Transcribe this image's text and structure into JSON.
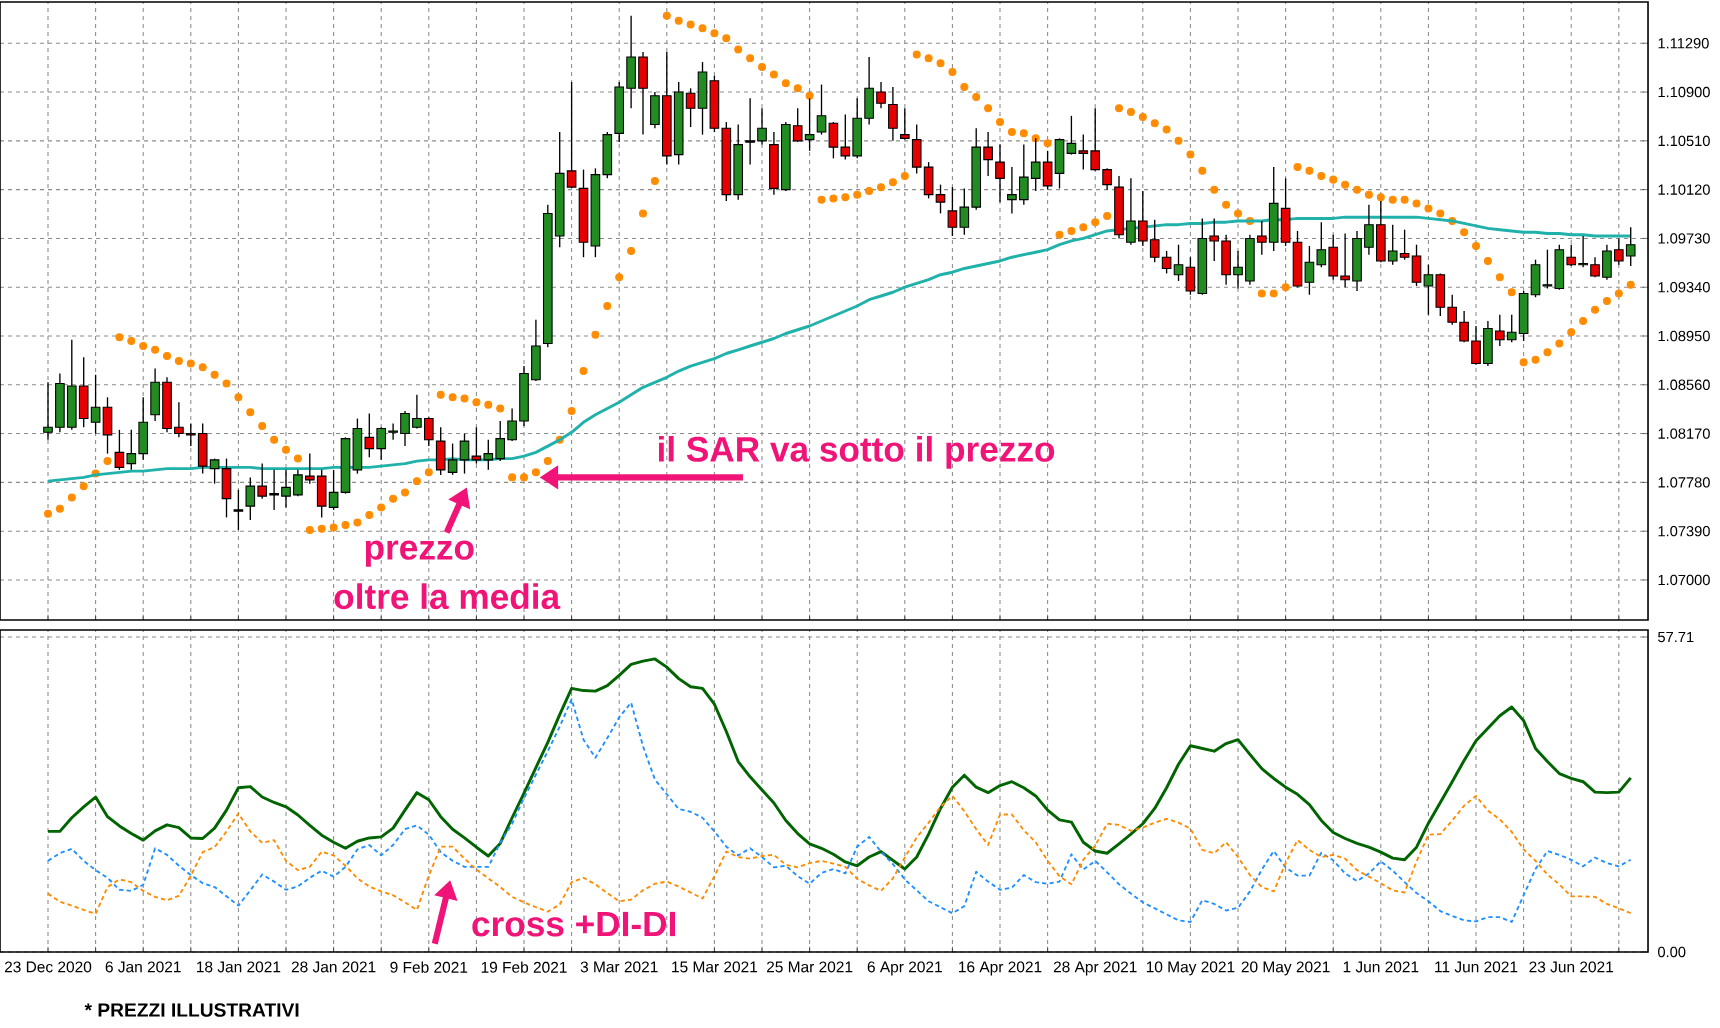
{
  "chart_data": [
    {
      "type": "candlestick",
      "categories": [
        null,
        null,
        null,
        null,
        null,
        null,
        null,
        null,
        null,
        null,
        null,
        null,
        null,
        null,
        null,
        null,
        null,
        null,
        null,
        null,
        null,
        null,
        null,
        null,
        null,
        null,
        null,
        null,
        null,
        null,
        null,
        null,
        null,
        null,
        null,
        null,
        null,
        null,
        null,
        null,
        null,
        null,
        null,
        null,
        null,
        null,
        null,
        null,
        null,
        null,
        null,
        null,
        null,
        null,
        null,
        null,
        null,
        null,
        null,
        null,
        null,
        null,
        null,
        null,
        null,
        null,
        null,
        null,
        null,
        null,
        null,
        null,
        null,
        null,
        null,
        null,
        null,
        null,
        null,
        null,
        null,
        null,
        null,
        null,
        null,
        null,
        null,
        null,
        null,
        null,
        null,
        null,
        null,
        null,
        null,
        null,
        null,
        null,
        null,
        null,
        null,
        null,
        null,
        null,
        null,
        null,
        null,
        null,
        null,
        null,
        null,
        null,
        null,
        null,
        null,
        null,
        null,
        null,
        null,
        null,
        null,
        null,
        null,
        null,
        null,
        null,
        null,
        null,
        null,
        null,
        null,
        null,
        null,
        null
      ],
      "ohlc": [
        [
          1.0818,
          1.0858,
          1.0812,
          1.0822
        ],
        [
          1.0822,
          1.0865,
          1.0818,
          1.0857
        ],
        [
          1.0822,
          1.0892,
          1.082,
          1.0855
        ],
        [
          1.0855,
          1.0878,
          1.0822,
          1.0829
        ],
        [
          1.0826,
          1.0864,
          1.0817,
          1.0838
        ],
        [
          1.0838,
          1.0846,
          1.0801,
          1.0816
        ],
        [
          1.0802,
          1.082,
          1.0788,
          1.079
        ],
        [
          1.0793,
          1.082,
          1.0788,
          1.0801
        ],
        [
          1.0801,
          1.0846,
          1.0796,
          1.0826
        ],
        [
          1.0832,
          1.0869,
          1.0827,
          1.0858
        ],
        [
          1.0858,
          1.0862,
          1.0818,
          1.0821
        ],
        [
          1.0822,
          1.0842,
          1.0814,
          1.0817
        ],
        [
          1.0817,
          1.0825,
          1.0807,
          1.0816
        ],
        [
          1.0817,
          1.0825,
          1.0785,
          1.0791
        ],
        [
          1.0789,
          1.0797,
          1.0777,
          1.0796
        ],
        [
          1.0789,
          1.0797,
          1.075,
          1.0765
        ],
        [
          1.0756,
          1.0772,
          1.074,
          1.0755
        ],
        [
          1.0759,
          1.0782,
          1.0748,
          1.0775
        ],
        [
          1.0775,
          1.0793,
          1.0765,
          1.0767
        ],
        [
          1.0768,
          1.0788,
          1.0756,
          1.0769
        ],
        [
          1.0767,
          1.0788,
          1.0758,
          1.0774
        ],
        [
          1.0768,
          1.0788,
          1.0767,
          1.0784
        ],
        [
          1.0783,
          1.0801,
          1.0777,
          1.078
        ],
        [
          1.0783,
          1.0788,
          1.075,
          1.0759
        ],
        [
          1.0758,
          1.0788,
          1.0756,
          1.077
        ],
        [
          1.077,
          1.0814,
          1.0769,
          1.0813
        ],
        [
          1.0788,
          1.0829,
          1.0785,
          1.0821
        ],
        [
          1.0814,
          1.0833,
          1.0798,
          1.0805
        ],
        [
          1.0805,
          1.0822,
          1.0796,
          1.0821
        ],
        [
          1.0818,
          1.0825,
          1.0812,
          1.0819
        ],
        [
          1.0817,
          1.0835,
          1.0807,
          1.0833
        ],
        [
          1.0822,
          1.0848,
          1.0821,
          1.0829
        ],
        [
          1.0829,
          1.083,
          1.0807,
          1.0812
        ],
        [
          1.0811,
          1.0822,
          1.0784,
          1.0788
        ],
        [
          1.0786,
          1.0809,
          1.0784,
          1.0796
        ],
        [
          1.0796,
          1.0817,
          1.0785,
          1.0811
        ],
        [
          1.0799,
          1.0822,
          1.0793,
          1.0796
        ],
        [
          1.0796,
          1.0812,
          1.0788,
          1.0801
        ],
        [
          1.0797,
          1.0827,
          1.0795,
          1.0813
        ],
        [
          1.0812,
          1.0837,
          1.0811,
          1.0827
        ],
        [
          1.0827,
          1.0871,
          1.0823,
          1.0865
        ],
        [
          1.086,
          1.0908,
          1.0859,
          1.0887
        ],
        [
          1.0889,
          1.1,
          1.0886,
          1.0993
        ],
        [
          1.0975,
          1.1058,
          1.0966,
          1.1025
        ],
        [
          1.1027,
          1.1098,
          1.1013,
          1.1014
        ],
        [
          1.1013,
          1.1028,
          1.0958,
          1.097
        ],
        [
          1.0967,
          1.1029,
          1.0958,
          1.1024
        ],
        [
          1.1024,
          1.1058,
          1.1021,
          1.1056
        ],
        [
          1.1057,
          1.1098,
          1.105,
          1.1094
        ],
        [
          1.1093,
          1.1151,
          1.1077,
          1.1118
        ],
        [
          1.1118,
          1.1122,
          1.1056,
          1.1093
        ],
        [
          1.1064,
          1.109,
          1.1061,
          1.1087
        ],
        [
          1.1087,
          1.1122,
          1.1032,
          1.1039
        ],
        [
          1.104,
          1.1098,
          1.1032,
          1.109
        ],
        [
          1.1089,
          1.1093,
          1.1062,
          1.1077
        ],
        [
          1.1077,
          1.1114,
          1.1056,
          1.1106
        ],
        [
          1.1099,
          1.1103,
          1.1058,
          1.1061
        ],
        [
          1.1061,
          1.1066,
          1.1003,
          1.1008
        ],
        [
          1.1008,
          1.1064,
          1.1004,
          1.1048
        ],
        [
          1.1051,
          1.1085,
          1.1032,
          1.105
        ],
        [
          1.1051,
          1.1077,
          1.1048,
          1.1061
        ],
        [
          1.1048,
          1.1058,
          1.1008,
          1.1013
        ],
        [
          1.1012,
          1.1066,
          1.1011,
          1.1064
        ],
        [
          1.1063,
          1.1077,
          1.105,
          1.1051
        ],
        [
          1.1052,
          1.1085,
          1.1043,
          1.1056
        ],
        [
          1.1058,
          1.1096,
          1.1056,
          1.1071
        ],
        [
          1.1065,
          1.1066,
          1.1037,
          1.1046
        ],
        [
          1.1046,
          1.1072,
          1.1036,
          1.1039
        ],
        [
          1.1039,
          1.1085,
          1.1037,
          1.1069
        ],
        [
          1.1069,
          1.1118,
          1.1064,
          1.1093
        ],
        [
          1.109,
          1.1098,
          1.1077,
          1.1081
        ],
        [
          1.108,
          1.1094,
          1.1051,
          1.1061
        ],
        [
          1.1056,
          1.1077,
          1.1052,
          1.1053
        ],
        [
          1.1052,
          1.1064,
          1.1025,
          1.103
        ],
        [
          1.103,
          1.1034,
          1.1005,
          1.1008
        ],
        [
          1.1008,
          1.1016,
          1.0993,
          1.1002
        ],
        [
          1.0995,
          1.1014,
          1.0975,
          1.0982
        ],
        [
          1.0982,
          1.1013,
          1.0976,
          1.0998
        ],
        [
          1.0998,
          1.1061,
          1.0996,
          1.1046
        ],
        [
          1.1046,
          1.1058,
          1.1023,
          1.1036
        ],
        [
          1.1034,
          1.1048,
          1.1002,
          1.1021
        ],
        [
          1.1004,
          1.103,
          1.0993,
          1.1008
        ],
        [
          1.1004,
          1.1048,
          1.1,
          1.1022
        ],
        [
          1.1021,
          1.1053,
          1.1011,
          1.1034
        ],
        [
          1.1034,
          1.1043,
          1.1012,
          1.1015
        ],
        [
          1.1025,
          1.1053,
          1.1013,
          1.1052
        ],
        [
          1.1041,
          1.1071,
          1.104,
          1.1049
        ],
        [
          1.1043,
          1.1056,
          1.1028,
          1.1041
        ],
        [
          1.1043,
          1.1077,
          1.1027,
          1.1028
        ],
        [
          1.1028,
          1.1029,
          1.1012,
          1.1016
        ],
        [
          1.1014,
          1.1023,
          1.0973,
          1.0976
        ],
        [
          1.097,
          1.1021,
          1.0968,
          1.0987
        ],
        [
          1.0987,
          1.1011,
          1.0967,
          1.0971
        ],
        [
          1.0972,
          1.0988,
          1.0954,
          1.0958
        ],
        [
          1.0958,
          1.0963,
          1.0945,
          1.0949
        ],
        [
          1.0944,
          1.0968,
          1.0939,
          1.0952
        ],
        [
          1.095,
          1.0958,
          1.0928,
          1.0931
        ],
        [
          1.0929,
          1.0989,
          1.0928,
          1.0973
        ],
        [
          1.0975,
          1.0989,
          1.0955,
          1.0971
        ],
        [
          1.0971,
          1.0976,
          1.0936,
          1.0944
        ],
        [
          1.0944,
          1.0963,
          1.0933,
          1.095
        ],
        [
          1.0939,
          1.0976,
          1.0936,
          1.0973
        ],
        [
          1.0975,
          1.0987,
          1.096,
          1.097
        ],
        [
          1.097,
          1.103,
          1.0963,
          1.1001
        ],
        [
          1.0997,
          1.1021,
          1.0967,
          1.097
        ],
        [
          1.097,
          1.0979,
          1.0934,
          1.0935
        ],
        [
          1.0938,
          1.0967,
          1.0928,
          1.0954
        ],
        [
          1.0952,
          1.0986,
          1.095,
          1.0964
        ],
        [
          1.0966,
          1.0976,
          1.094,
          1.0943
        ],
        [
          1.0943,
          1.0977,
          1.0934,
          1.094
        ],
        [
          1.0939,
          1.0979,
          1.0931,
          1.0973
        ],
        [
          1.0966,
          1.1,
          1.096,
          1.0984
        ],
        [
          1.0984,
          1.1003,
          1.0954,
          1.0955
        ],
        [
          1.0955,
          1.0984,
          1.0952,
          1.0963
        ],
        [
          1.0961,
          1.098,
          1.0956,
          1.0958
        ],
        [
          1.0959,
          1.0968,
          1.0935,
          1.0938
        ],
        [
          1.0935,
          1.0952,
          1.0912,
          1.0944
        ],
        [
          1.0944,
          1.0945,
          1.0911,
          1.0918
        ],
        [
          1.0918,
          1.0928,
          1.0904,
          1.0906
        ],
        [
          1.0906,
          1.0915,
          1.089,
          1.0891
        ],
        [
          1.0891,
          1.0903,
          1.0872,
          1.0873
        ],
        [
          1.0873,
          1.0907,
          1.0871,
          1.0901
        ],
        [
          1.0899,
          1.0912,
          1.0887,
          1.0892
        ],
        [
          1.0892,
          1.0912,
          1.089,
          1.0898
        ],
        [
          1.0897,
          1.0931,
          1.0891,
          1.0929
        ],
        [
          1.0928,
          1.0956,
          1.0926,
          1.0952
        ],
        [
          1.0935,
          1.0964,
          1.0933,
          1.0936
        ],
        [
          1.0933,
          1.0968,
          1.0932,
          1.0964
        ],
        [
          1.0958,
          1.0968,
          1.0951,
          1.0952
        ],
        [
          1.0952,
          1.0975,
          1.095,
          1.0953
        ],
        [
          1.0952,
          1.0958,
          1.0942,
          1.0943
        ],
        [
          1.0942,
          1.0968,
          1.094,
          1.0963
        ],
        [
          1.0964,
          1.0973,
          1.0952,
          1.0955
        ],
        [
          1.0959,
          1.0982,
          1.0951,
          1.0968
        ]
      ],
      "series": [
        {
          "type": "scatter",
          "color": "#ff8c00",
          "marker": "circle",
          "values": [
            1.0753,
            1.0757,
            1.0766,
            1.0775,
            1.0785,
            1.0795,
            1.0894,
            1.0891,
            1.0887,
            1.0884,
            1.0879,
            1.0875,
            1.0873,
            1.087,
            1.0864,
            1.0857,
            1.0846,
            1.0834,
            1.0823,
            1.0812,
            1.0804,
            1.0797,
            1.074,
            1.0741,
            1.0742,
            1.0744,
            1.0746,
            1.0752,
            1.0758,
            1.0765,
            1.077,
            1.0779,
            1.0786,
            1.0848,
            1.0846,
            1.0845,
            1.0842,
            1.084,
            1.0837,
            1.0782,
            1.0782,
            1.0786,
            1.0795,
            1.0812,
            1.0835,
            1.0867,
            1.0896,
            1.0919,
            1.0942,
            1.0963,
            1.0993,
            1.1019,
            1.1151,
            1.1147,
            1.1144,
            1.1141,
            1.1137,
            1.1133,
            1.1124,
            1.1117,
            1.111,
            1.1104,
            1.1097,
            1.1093,
            1.1087,
            1.1004,
            1.1005,
            1.1006,
            1.1008,
            1.1011,
            1.1014,
            1.1018,
            1.1023,
            1.112,
            1.1117,
            1.1113,
            1.1106,
            1.1094,
            1.1086,
            1.1077,
            1.1066,
            1.1058,
            1.1057,
            1.1053,
            1.1049,
            1.0976,
            1.0979,
            1.0982,
            1.0986,
            1.0991,
            1.1077,
            1.1074,
            1.107,
            1.1065,
            1.106,
            1.1051,
            1.104,
            1.1027,
            1.1012,
            1.1,
            1.0993,
            1.0987,
            1.0929,
            1.0929,
            1.0934,
            1.103,
            1.1027,
            1.1023,
            1.102,
            1.1016,
            1.1012,
            1.1008,
            1.1006,
            1.1004,
            1.1004,
            1.1001,
            1.0997,
            1.0993,
            1.0987,
            1.0978,
            1.0967,
            1.0955,
            1.0942,
            1.093,
            1.0874,
            1.0876,
            1.0882,
            1.0889,
            1.0898,
            1.0907,
            1.0916,
            1.0923,
            1.0929,
            1.0936
          ]
        },
        {
          "type": "line",
          "color": "#20b2aa",
          "values": [
            1.0779,
            1.078,
            1.0781,
            1.0782,
            1.0784,
            1.0785,
            1.0786,
            1.0787,
            1.0787,
            1.0788,
            1.0789,
            1.0789,
            1.0789,
            1.079,
            1.079,
            1.079,
            1.079,
            1.079,
            1.0789,
            1.0789,
            1.0789,
            1.0789,
            1.0789,
            1.0789,
            1.079,
            1.079,
            1.079,
            1.079,
            1.0791,
            1.0792,
            1.0793,
            1.0795,
            1.0796,
            1.0796,
            1.0797,
            1.0796,
            1.0796,
            1.0796,
            1.0797,
            1.0797,
            1.0799,
            1.0802,
            1.0807,
            1.0812,
            1.0818,
            1.0826,
            1.0832,
            1.0837,
            1.0842,
            1.0848,
            1.0854,
            1.0858,
            1.0862,
            1.0867,
            1.0871,
            1.0874,
            1.0877,
            1.0881,
            1.0884,
            1.0887,
            1.089,
            1.0893,
            1.0897,
            1.09,
            1.0903,
            1.0907,
            1.0911,
            1.0915,
            1.0919,
            1.0924,
            1.0927,
            1.093,
            1.0934,
            1.0937,
            1.094,
            1.0944,
            1.0946,
            1.0949,
            1.0951,
            1.0953,
            1.0955,
            1.0958,
            1.096,
            1.0962,
            1.0964,
            1.0968,
            1.0971,
            1.0973,
            1.0976,
            1.0979,
            1.098,
            1.0981,
            1.0982,
            1.0983,
            1.0984,
            1.0984,
            1.0985,
            1.0985,
            1.0986,
            1.0986,
            1.0987,
            1.0987,
            1.0987,
            1.0988,
            1.0988,
            1.0989,
            1.0989,
            1.0989,
            1.0989,
            1.099,
            1.099,
            1.099,
            1.099,
            1.099,
            1.099,
            1.099,
            1.0989,
            1.0988,
            1.0987,
            1.0985,
            1.0983,
            1.0981,
            1.098,
            1.0979,
            1.0978,
            1.0978,
            1.0977,
            1.0977,
            1.0976,
            1.0976,
            1.0975,
            1.0975,
            1.0975,
            1.0975
          ]
        }
      ],
      "ylim": [
        1.0668,
        1.1162
      ],
      "yticks": [
        {
          "value": 1.07,
          "label": "1.07000"
        },
        {
          "value": 1.0739,
          "label": "1.07390"
        },
        {
          "value": 1.0778,
          "label": "1.07780"
        },
        {
          "value": 1.0817,
          "label": "1.08170"
        },
        {
          "value": 1.0856,
          "label": "1.08560"
        },
        {
          "value": 1.0895,
          "label": "1.08950"
        },
        {
          "value": 1.0934,
          "label": "1.09340"
        },
        {
          "value": 1.0973,
          "label": "1.09730"
        },
        {
          "value": 1.1012,
          "label": "1.10120"
        },
        {
          "value": 1.1051,
          "label": "1.10510"
        },
        {
          "value": 1.109,
          "label": "1.10900"
        },
        {
          "value": 1.1129,
          "label": "1.11290"
        }
      ],
      "grid": true,
      "tick_labels": "y",
      "annotations": [
        "il SAR va sotto il prezzo",
        {
          "text": "prezzo",
          "y": 1.0774
        },
        "oltre la media"
      ]
    },
    {
      "type": "line",
      "categories": [
        "23 Dec 2020",
        null,
        null,
        null,
        null,
        null,
        null,
        null,
        "6 Jan 2021",
        null,
        null,
        null,
        null,
        null,
        null,
        null,
        "18 Jan 2021",
        null,
        null,
        null,
        null,
        null,
        null,
        null,
        "28 Jan 2021",
        null,
        null,
        null,
        null,
        null,
        null,
        null,
        "9 Feb 2021",
        null,
        null,
        null,
        null,
        null,
        null,
        null,
        "19 Feb 2021",
        null,
        null,
        null,
        null,
        null,
        null,
        null,
        "3 Mar 2021",
        null,
        null,
        null,
        null,
        null,
        null,
        null,
        "15 Mar 2021",
        null,
        null,
        null,
        null,
        null,
        null,
        null,
        "25 Mar 2021",
        null,
        null,
        null,
        null,
        null,
        null,
        null,
        "6 Apr 2021",
        null,
        null,
        null,
        null,
        null,
        null,
        null,
        "16 Apr 2021",
        null,
        null,
        null,
        null,
        null,
        null,
        null,
        "28 Apr 2021",
        null,
        null,
        null,
        null,
        null,
        null,
        null,
        "10 May 2021",
        null,
        null,
        null,
        null,
        null,
        null,
        null,
        "20 May 2021",
        null,
        null,
        null,
        null,
        null,
        null,
        null,
        "1 Jun 2021",
        null,
        null,
        null,
        null,
        null,
        null,
        null,
        "11 Jun 2021",
        null,
        null,
        null,
        null,
        null,
        null,
        null,
        "23 Jun 2021",
        null,
        null,
        null,
        null,
        null
      ],
      "series": [
        {
          "color": "#006400",
          "line_style": "solid",
          "values": [
            22.1,
            22.1,
            24.6,
            26.6,
            28.4,
            24.8,
            23.1,
            21.7,
            20.5,
            22.2,
            23.3,
            22.8,
            20.9,
            20.8,
            22.7,
            26.0,
            30.1,
            30.3,
            28.4,
            27.4,
            26.6,
            25.1,
            23.2,
            21.4,
            20.1,
            19.0,
            20.3,
            20.9,
            21.1,
            22.7,
            26.0,
            29.2,
            27.9,
            24.8,
            22.5,
            20.9,
            19.2,
            17.6,
            19.9,
            24.6,
            29.1,
            33.8,
            38.4,
            43.5,
            48.3,
            47.9,
            47.8,
            48.8,
            50.7,
            52.7,
            53.3,
            53.7,
            52.2,
            50.1,
            48.6,
            48.3,
            45.4,
            40.4,
            34.9,
            32.1,
            29.7,
            27.3,
            24.1,
            21.7,
            19.8,
            19.0,
            17.9,
            16.5,
            15.8,
            17.4,
            18.4,
            16.8,
            15.2,
            17.4,
            21.6,
            26.3,
            30.2,
            32.4,
            30.2,
            29.2,
            30.5,
            31.2,
            30.1,
            28.6,
            26.0,
            24.2,
            23.8,
            20.1,
            18.5,
            18.1,
            19.8,
            21.6,
            23.5,
            26.3,
            30.1,
            34.4,
            37.8,
            37.3,
            36.8,
            38.2,
            38.9,
            36.2,
            33.6,
            31.8,
            30.2,
            28.9,
            27.0,
            24.1,
            21.9,
            20.8,
            19.9,
            19.2,
            18.3,
            17.2,
            16.9,
            19.2,
            23.6,
            27.4,
            31.2,
            35.1,
            38.7,
            41.0,
            43.3,
            44.9,
            42.4,
            37.3,
            34.9,
            32.7,
            31.8,
            31.2,
            29.3,
            29.2,
            29.3,
            31.9
          ]
        },
        {
          "color": "#1e90ff",
          "line_style": "dashed",
          "values": [
            16.7,
            18.1,
            18.9,
            16.7,
            15.0,
            13.6,
            11.4,
            11.2,
            12.3,
            19.0,
            17.8,
            15.8,
            14.1,
            12.6,
            11.9,
            10.2,
            8.5,
            11.3,
            14.2,
            12.9,
            11.4,
            12.0,
            13.6,
            14.9,
            13.8,
            15.6,
            18.8,
            19.6,
            17.7,
            19.6,
            22.5,
            23.2,
            21.5,
            18.3,
            16.7,
            15.6,
            15.6,
            15.6,
            20.0,
            23.5,
            28.2,
            32.5,
            36.8,
            41.3,
            46.3,
            38.9,
            35.6,
            39.2,
            43.0,
            45.7,
            37.7,
            31.6,
            28.9,
            26.2,
            25.7,
            24.6,
            22.1,
            19.3,
            17.7,
            19.0,
            17.4,
            15.5,
            15.8,
            13.9,
            12.5,
            14.5,
            15.2,
            14.4,
            19.3,
            21.1,
            18.4,
            16.1,
            13.3,
            11.3,
            9.3,
            8.2,
            7.1,
            8.4,
            14.7,
            12.9,
            11.4,
            11.8,
            14.1,
            12.8,
            12.5,
            12.9,
            17.9,
            15.1,
            16.7,
            14.6,
            12.4,
            10.7,
            9.1,
            8.0,
            6.9,
            5.8,
            5.5,
            9.5,
            8.8,
            7.6,
            8.1,
            11.1,
            15.1,
            18.5,
            15.5,
            14.0,
            14.0,
            18.2,
            16.8,
            14.4,
            13.0,
            14.4,
            16.6,
            14.9,
            12.8,
            10.8,
            9.3,
            7.5,
            6.6,
            5.8,
            5.6,
            6.4,
            6.4,
            5.5,
            10.4,
            15.2,
            18.5,
            17.8,
            16.9,
            15.7,
            17.3,
            16.3,
            15.7,
            16.9
          ]
        },
        {
          "color": "#ff8c00",
          "line_style": "dashed",
          "values": [
            10.7,
            9.2,
            8.5,
            7.7,
            7.0,
            11.9,
            13.3,
            12.8,
            11.2,
            10.1,
            9.5,
            10.3,
            14.0,
            18.3,
            19.2,
            22.1,
            25.4,
            22.1,
            20.0,
            20.5,
            16.7,
            15.0,
            15.6,
            18.4,
            17.7,
            15.8,
            13.5,
            12.0,
            11.1,
            10.4,
            9.1,
            7.7,
            14.0,
            19.3,
            19.3,
            17.1,
            15.1,
            13.5,
            11.9,
            10.1,
            9.1,
            8.2,
            7.4,
            8.7,
            12.8,
            13.6,
            12.4,
            10.8,
            9.3,
            9.6,
            11.3,
            12.5,
            12.9,
            12.0,
            10.9,
            9.8,
            13.9,
            18.4,
            17.4,
            17.1,
            17.6,
            17.8,
            16.0,
            15.5,
            16.3,
            16.7,
            16.2,
            15.6,
            13.4,
            12.2,
            11.2,
            13.5,
            17.3,
            21.0,
            23.7,
            26.6,
            28.6,
            25.8,
            22.5,
            19.6,
            25.2,
            25.2,
            22.3,
            20.1,
            16.7,
            13.9,
            12.4,
            16.9,
            19.5,
            23.5,
            23.3,
            22.2,
            22.8,
            23.7,
            24.4,
            23.7,
            22.6,
            18.7,
            18.1,
            20.1,
            17.4,
            14.1,
            11.9,
            11.1,
            16.3,
            20.5,
            18.7,
            17.4,
            17.8,
            17.1,
            15.0,
            13.8,
            12.6,
            11.3,
            10.9,
            16.6,
            21.5,
            21.6,
            24.1,
            26.8,
            28.6,
            25.9,
            24.3,
            22.0,
            18.8,
            16.7,
            14.2,
            12.4,
            10.2,
            10.2,
            10.1,
            8.8,
            8.0,
            7.1
          ]
        }
      ],
      "ylim": [
        0,
        59
      ],
      "yticks": [
        {
          "value": 0,
          "label": "0.00"
        },
        57.71
      ],
      "grid": true,
      "annotations": [
        {
          "text": "cross +DI-DI",
          "y": 13.2
        },
        "* PREZZI ILLUSTRATIVI"
      ]
    }
  ]
}
